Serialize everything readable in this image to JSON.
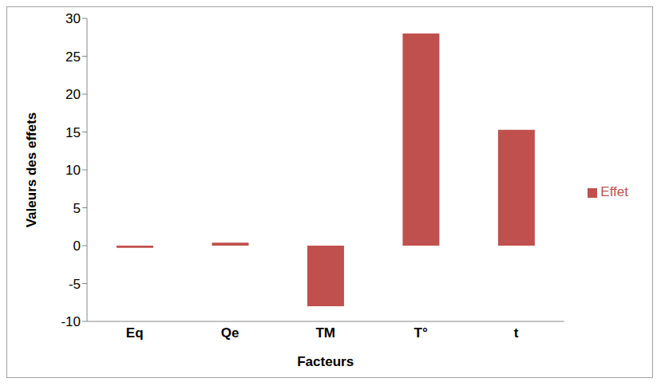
{
  "chart_data": {
    "type": "bar",
    "x_label": "Facteurs",
    "y_label": "Valeurs des effets",
    "categories": [
      "Eq",
      "Qe",
      "TM",
      "T°",
      "t"
    ],
    "series": [
      {
        "name": "Effet",
        "color": "#c0504d",
        "values": [
          -0.3,
          0.4,
          -8,
          28,
          15.3
        ]
      }
    ],
    "ylim": [
      -10,
      30
    ],
    "yticks": [
      -10,
      -5,
      0,
      5,
      10,
      15,
      20,
      25,
      30
    ],
    "grid": false,
    "legend": "right"
  }
}
